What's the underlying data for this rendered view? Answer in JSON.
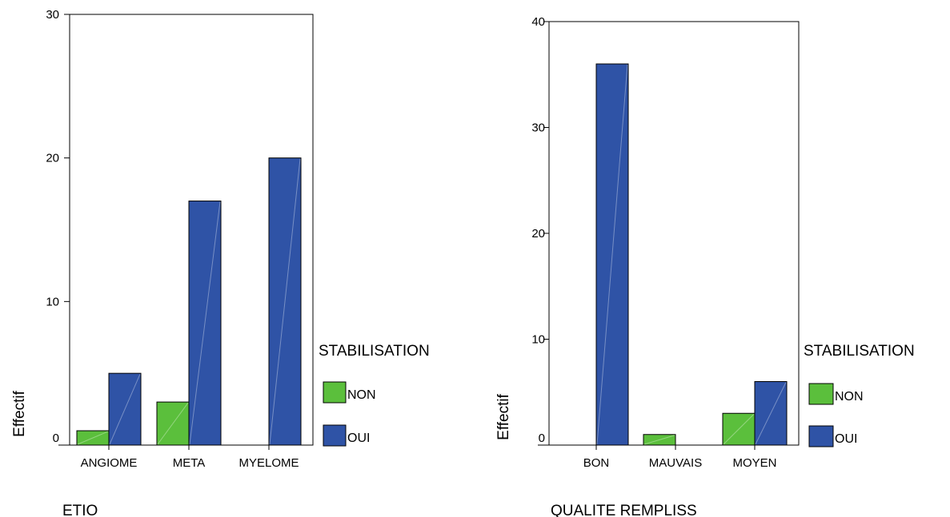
{
  "chart_data": [
    {
      "type": "bar",
      "xlabel": "ETIO",
      "ylabel": "Effectif",
      "ylim": [
        0,
        30
      ],
      "yticks": [
        0,
        10,
        20,
        30
      ],
      "categories": [
        "ANGIOME",
        "META",
        "MYELOME"
      ],
      "series": [
        {
          "name": "NON",
          "color": "#5bbf3c",
          "values": [
            1,
            3,
            0
          ]
        },
        {
          "name": "OUI",
          "color": "#2f53a6",
          "values": [
            5,
            17,
            20
          ]
        }
      ],
      "legend_title": "STABILISATION",
      "legend_position": "right",
      "grid": false
    },
    {
      "type": "bar",
      "xlabel": "QUALITE REMPLISS",
      "ylabel": "Effectif",
      "ylim": [
        0,
        40
      ],
      "yticks": [
        0,
        10,
        20,
        30,
        40
      ],
      "categories": [
        "BON",
        "MAUVAIS",
        "MOYEN"
      ],
      "series": [
        {
          "name": "NON",
          "color": "#5bbf3c",
          "values": [
            0,
            1,
            3
          ]
        },
        {
          "name": "OUI",
          "color": "#2f53a6",
          "values": [
            36,
            0,
            6
          ]
        }
      ],
      "legend_title": "STABILISATION",
      "legend_position": "right",
      "grid": false
    }
  ]
}
